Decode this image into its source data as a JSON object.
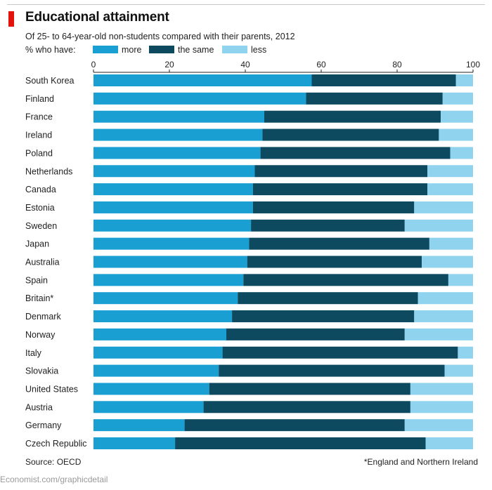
{
  "header": {
    "title": "Educational attainment",
    "subtitle": "Of 25- to 64-year-old non-students compared with their parents, 2012",
    "legend_lead": "% who have:"
  },
  "footer": {
    "source": "Source: OECD",
    "footnote": "*England and Northern Ireland",
    "credit": "Economist.com/graphicdetail"
  },
  "chart_data": {
    "type": "bar",
    "orientation": "horizontal",
    "stacked": true,
    "xlim": [
      0,
      100
    ],
    "x_ticks": [
      "0",
      "20",
      "40",
      "60",
      "80",
      "100"
    ],
    "x_tick_values": [
      0,
      20,
      40,
      60,
      80,
      100
    ],
    "tick_position": "top",
    "grid": false,
    "legend_position": "top",
    "categories": [
      "South Korea",
      "Finland",
      "France",
      "Ireland",
      "Poland",
      "Netherlands",
      "Canada",
      "Estonia",
      "Sweden",
      "Japan",
      "Australia",
      "Spain",
      "Britain*",
      "Denmark",
      "Norway",
      "Italy",
      "Slovakia",
      "United States",
      "Austria",
      "Germany",
      "Czech Republic"
    ],
    "series": [
      {
        "name": "more",
        "color": "#1a9fd3",
        "values": [
          57.5,
          56,
          45,
          44.5,
          44,
          42.5,
          42,
          42,
          41.5,
          41,
          40.5,
          39.5,
          38,
          36.5,
          35,
          34,
          33,
          30.5,
          29,
          24,
          21.5
        ]
      },
      {
        "name": "the same",
        "color": "#0d4a60",
        "values": [
          38,
          36,
          46.5,
          46.5,
          50,
          45.5,
          46,
          42.5,
          40.5,
          47.5,
          46,
          54,
          47.5,
          48,
          47,
          62,
          59.5,
          53,
          54.5,
          58,
          66
        ]
      },
      {
        "name": "less",
        "color": "#8fd3ef",
        "values": [
          4.5,
          8,
          8.5,
          9,
          6,
          12,
          12,
          15.5,
          18,
          11.5,
          13.5,
          6.5,
          14.5,
          15.5,
          18,
          4,
          7.5,
          16.5,
          16.5,
          18,
          12.5
        ]
      }
    ]
  }
}
